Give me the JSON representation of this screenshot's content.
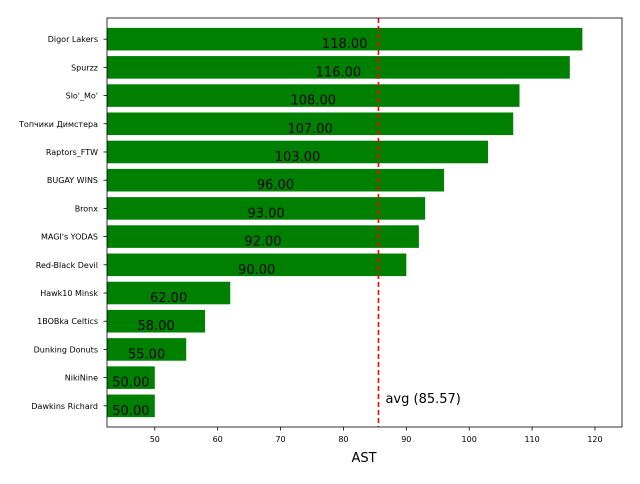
{
  "chart_data": {
    "type": "bar",
    "orientation": "horizontal",
    "categories": [
      "Digor Lakers",
      "Spurzz",
      "Slo'_Mo'",
      "Топчики Димстера",
      "Raptors_FTW",
      "BUGAY WINS",
      "Bronx",
      "MAGI's YODAS",
      "Red-Black Devil",
      "Hawk10 Minsk",
      "1BOBka Celtics",
      "Dunking Donuts",
      "NikiNine",
      "Dawkins Richard"
    ],
    "values": [
      118,
      116,
      108,
      107,
      103,
      96,
      93,
      92,
      90,
      62,
      58,
      55,
      50,
      50
    ],
    "value_labels": [
      "118.00",
      "116.00",
      "108.00",
      "107.00",
      "103.00",
      "96.00",
      "93.00",
      "92.00",
      "90.00",
      "62.00",
      "58.00",
      "55.00",
      "50.00",
      "50.00"
    ],
    "bar_color": "#008000",
    "xlabel": "AST",
    "ylabel": "",
    "xlim": [
      42.4,
      124.3
    ],
    "xticks": [
      50,
      60,
      70,
      80,
      90,
      100,
      110,
      120
    ],
    "grid": false,
    "average": {
      "value": 85.57,
      "label": "avg (85.57)",
      "color": "#ff0000"
    }
  }
}
